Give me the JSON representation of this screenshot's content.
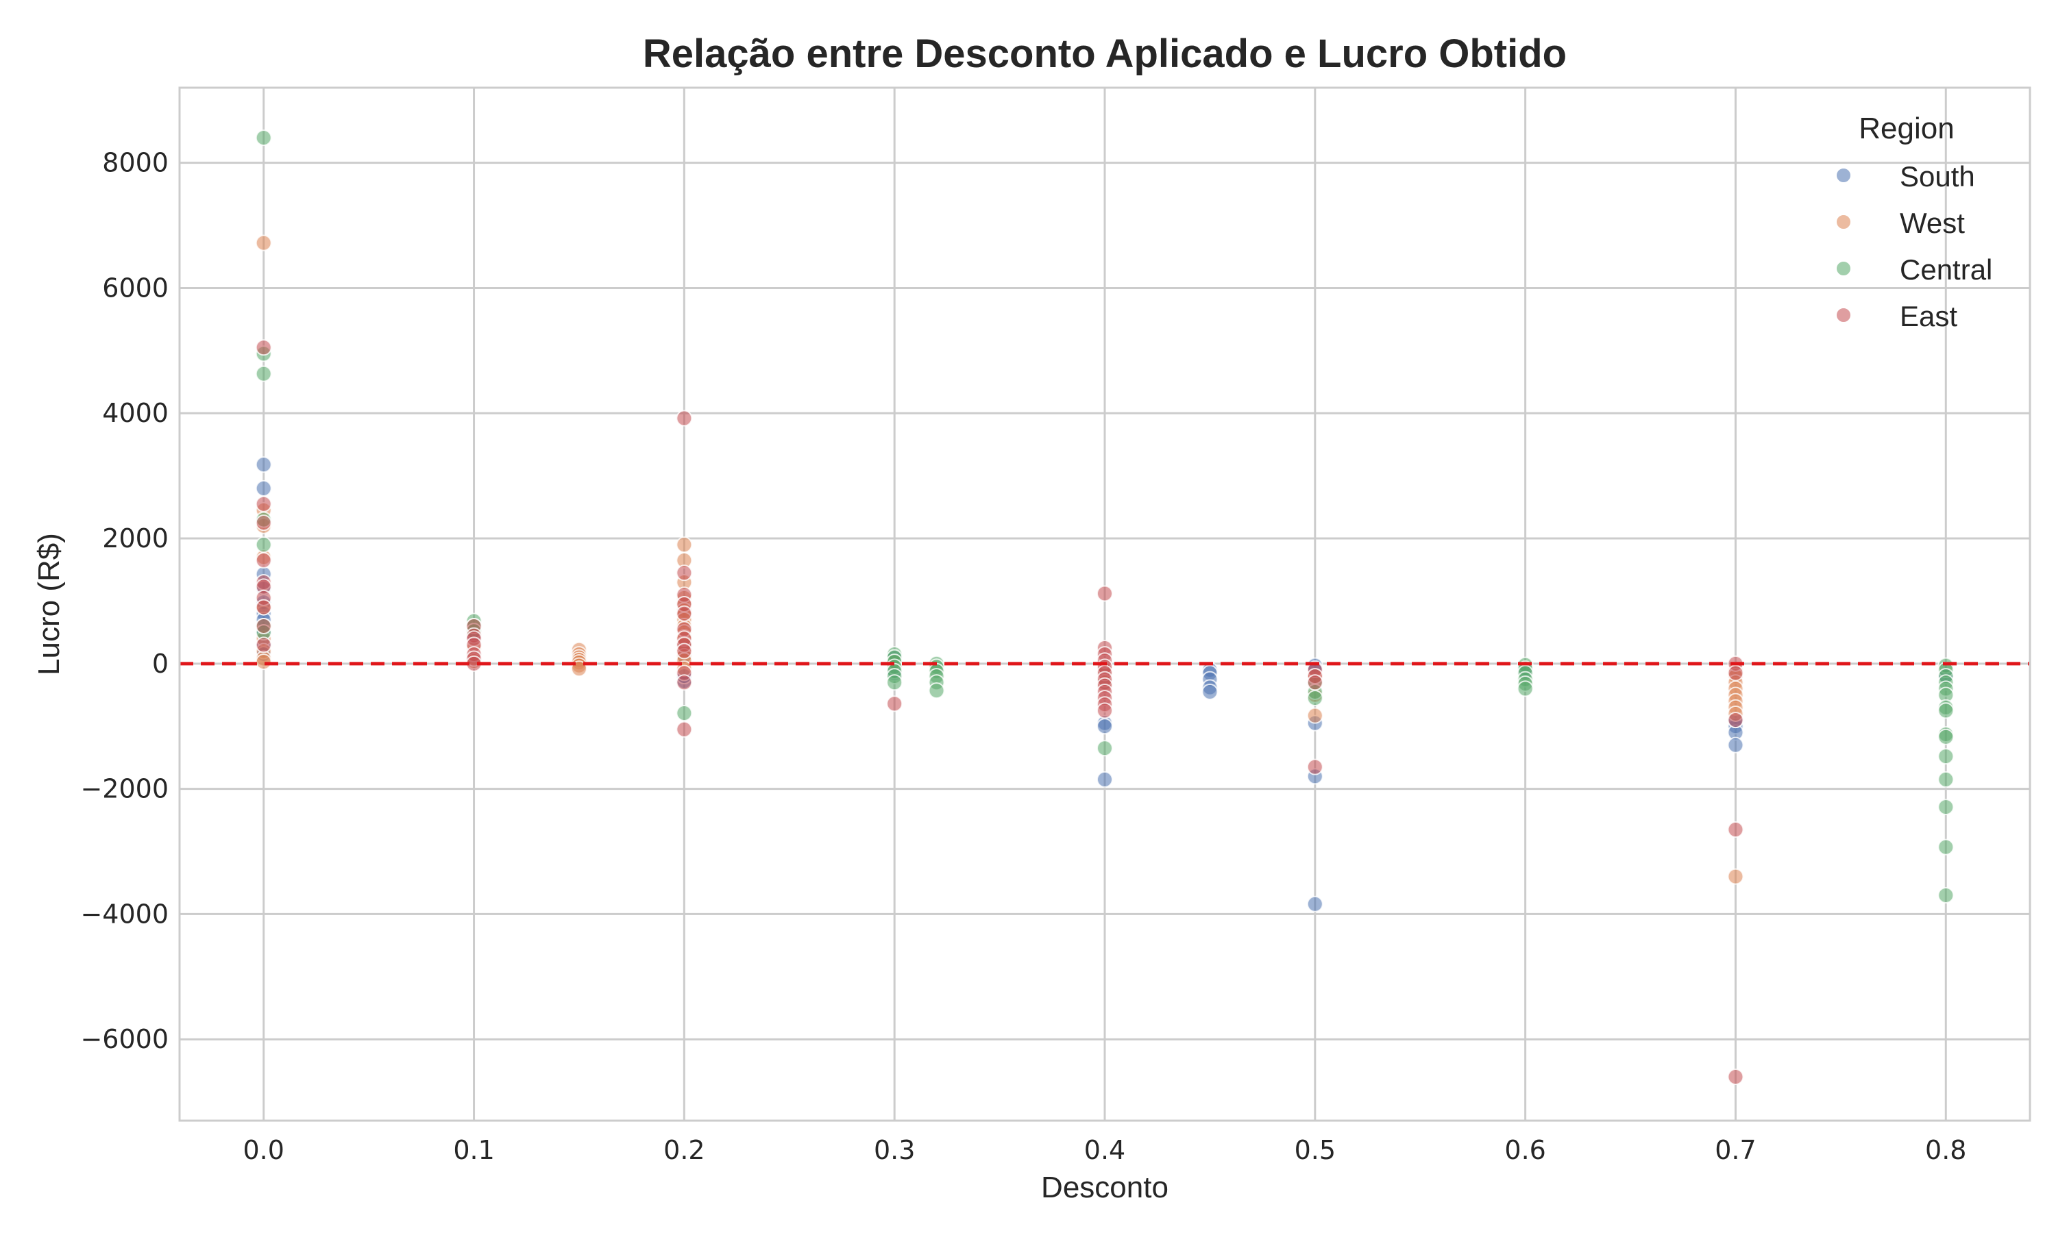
{
  "chart_data": {
    "type": "scatter",
    "title": "Relação entre Desconto Aplicado e Lucro Obtido",
    "xlabel": "Desconto",
    "ylabel": "Lucro (R$)",
    "xlim": [
      -0.04,
      0.84
    ],
    "ylim": [
      -7300,
      9200
    ],
    "x_ticks": [
      0.0,
      0.1,
      0.2,
      0.3,
      0.4,
      0.5,
      0.6,
      0.7,
      0.8
    ],
    "x_tick_labels": [
      "0.0",
      "0.1",
      "0.2",
      "0.3",
      "0.4",
      "0.5",
      "0.6",
      "0.7",
      "0.8"
    ],
    "y_ticks": [
      -6000,
      -4000,
      -2000,
      0,
      2000,
      4000,
      6000,
      8000
    ],
    "y_tick_labels": [
      "−6000",
      "−4000",
      "−2000",
      "0",
      "2000",
      "4000",
      "6000",
      "8000"
    ],
    "grid": true,
    "reference_line": {
      "y": 0,
      "color": "#e0161a",
      "style": "dashed"
    },
    "legend": {
      "title": "Region",
      "placement": "top-right"
    },
    "series": [
      {
        "name": "South",
        "color": "#4c72b0",
        "points": [
          [
            0.0,
            3180
          ],
          [
            0.0,
            2800
          ],
          [
            0.0,
            1430
          ],
          [
            0.0,
            1200
          ],
          [
            0.0,
            980
          ],
          [
            0.0,
            800
          ],
          [
            0.0,
            700
          ],
          [
            0.0,
            500
          ],
          [
            0.0,
            300
          ],
          [
            0.0,
            150
          ],
          [
            0.1,
            420
          ],
          [
            0.1,
            120
          ],
          [
            0.15,
            60
          ],
          [
            0.2,
            -280
          ],
          [
            0.2,
            -200
          ],
          [
            0.2,
            300
          ],
          [
            0.2,
            120
          ],
          [
            0.3,
            -150
          ],
          [
            0.3,
            90
          ],
          [
            0.4,
            -950
          ],
          [
            0.4,
            -1000
          ],
          [
            0.4,
            -1850
          ],
          [
            0.4,
            -300
          ],
          [
            0.4,
            -100
          ],
          [
            0.45,
            -100
          ],
          [
            0.45,
            -150
          ],
          [
            0.45,
            -250
          ],
          [
            0.45,
            -380
          ],
          [
            0.45,
            -450
          ],
          [
            0.5,
            -30
          ],
          [
            0.5,
            -80
          ],
          [
            0.5,
            -950
          ],
          [
            0.5,
            -1800
          ],
          [
            0.5,
            -3840
          ],
          [
            0.6,
            -120
          ],
          [
            0.7,
            -1000
          ],
          [
            0.7,
            -1100
          ],
          [
            0.7,
            -1300
          ],
          [
            0.7,
            -900
          ],
          [
            0.8,
            -200
          ]
        ]
      },
      {
        "name": "West",
        "color": "#dd8452",
        "points": [
          [
            0.0,
            6720
          ],
          [
            0.0,
            2450
          ],
          [
            0.0,
            2200
          ],
          [
            0.0,
            1700
          ],
          [
            0.0,
            900
          ],
          [
            0.0,
            400
          ],
          [
            0.0,
            200
          ],
          [
            0.0,
            80
          ],
          [
            0.0,
            30
          ],
          [
            0.1,
            250
          ],
          [
            0.1,
            100
          ],
          [
            0.1,
            40
          ],
          [
            0.15,
            220
          ],
          [
            0.15,
            150
          ],
          [
            0.15,
            100
          ],
          [
            0.15,
            60
          ],
          [
            0.15,
            20
          ],
          [
            0.15,
            -30
          ],
          [
            0.15,
            -80
          ],
          [
            0.2,
            1900
          ],
          [
            0.2,
            1650
          ],
          [
            0.2,
            1300
          ],
          [
            0.2,
            1050
          ],
          [
            0.2,
            950
          ],
          [
            0.2,
            850
          ],
          [
            0.2,
            780
          ],
          [
            0.2,
            700
          ],
          [
            0.2,
            600
          ],
          [
            0.2,
            500
          ],
          [
            0.2,
            420
          ],
          [
            0.2,
            320
          ],
          [
            0.2,
            200
          ],
          [
            0.2,
            120
          ],
          [
            0.2,
            50
          ],
          [
            0.2,
            -80
          ],
          [
            0.3,
            30
          ],
          [
            0.4,
            -100
          ],
          [
            0.4,
            -300
          ],
          [
            0.5,
            -200
          ],
          [
            0.5,
            -500
          ],
          [
            0.5,
            -830
          ],
          [
            0.7,
            -100
          ],
          [
            0.7,
            -200
          ],
          [
            0.7,
            -300
          ],
          [
            0.7,
            -400
          ],
          [
            0.7,
            -500
          ],
          [
            0.7,
            -600
          ],
          [
            0.7,
            -700
          ],
          [
            0.7,
            -800
          ],
          [
            0.7,
            -3400
          ]
        ]
      },
      {
        "name": "Central",
        "color": "#55a868",
        "points": [
          [
            0.0,
            8400
          ],
          [
            0.0,
            4950
          ],
          [
            0.0,
            4630
          ],
          [
            0.0,
            2300
          ],
          [
            0.0,
            1900
          ],
          [
            0.0,
            600
          ],
          [
            0.0,
            500
          ],
          [
            0.1,
            680
          ],
          [
            0.1,
            600
          ],
          [
            0.1,
            520
          ],
          [
            0.2,
            -790
          ],
          [
            0.3,
            150
          ],
          [
            0.3,
            100
          ],
          [
            0.3,
            30
          ],
          [
            0.3,
            -50
          ],
          [
            0.3,
            -120
          ],
          [
            0.3,
            -200
          ],
          [
            0.3,
            -300
          ],
          [
            0.32,
            0
          ],
          [
            0.32,
            -50
          ],
          [
            0.32,
            -120
          ],
          [
            0.32,
            -200
          ],
          [
            0.32,
            -300
          ],
          [
            0.32,
            -430
          ],
          [
            0.4,
            -1350
          ],
          [
            0.5,
            -300
          ],
          [
            0.5,
            -450
          ],
          [
            0.5,
            -550
          ],
          [
            0.6,
            -20
          ],
          [
            0.6,
            -80
          ],
          [
            0.6,
            -150
          ],
          [
            0.6,
            -250
          ],
          [
            0.6,
            -320
          ],
          [
            0.6,
            -400
          ],
          [
            0.8,
            -30
          ],
          [
            0.8,
            -100
          ],
          [
            0.8,
            -200
          ],
          [
            0.8,
            -300
          ],
          [
            0.8,
            -400
          ],
          [
            0.8,
            -500
          ],
          [
            0.8,
            -700
          ],
          [
            0.8,
            -750
          ],
          [
            0.8,
            -1130
          ],
          [
            0.8,
            -1170
          ],
          [
            0.8,
            -1480
          ],
          [
            0.8,
            -1850
          ],
          [
            0.8,
            -2290
          ],
          [
            0.8,
            -2930
          ],
          [
            0.8,
            -3700
          ]
        ]
      },
      {
        "name": "East",
        "color": "#c44e52",
        "points": [
          [
            0.0,
            5050
          ],
          [
            0.0,
            2550
          ],
          [
            0.0,
            2250
          ],
          [
            0.0,
            1650
          ],
          [
            0.0,
            1300
          ],
          [
            0.0,
            1230
          ],
          [
            0.0,
            1050
          ],
          [
            0.0,
            900
          ],
          [
            0.0,
            600
          ],
          [
            0.0,
            300
          ],
          [
            0.1,
            600
          ],
          [
            0.1,
            450
          ],
          [
            0.1,
            400
          ],
          [
            0.1,
            300
          ],
          [
            0.1,
            150
          ],
          [
            0.1,
            80
          ],
          [
            0.1,
            0
          ],
          [
            0.2,
            3920
          ],
          [
            0.2,
            1450
          ],
          [
            0.2,
            1100
          ],
          [
            0.2,
            950
          ],
          [
            0.2,
            800
          ],
          [
            0.2,
            550
          ],
          [
            0.2,
            400
          ],
          [
            0.2,
            300
          ],
          [
            0.2,
            200
          ],
          [
            0.2,
            -150
          ],
          [
            0.2,
            -300
          ],
          [
            0.2,
            -1050
          ],
          [
            0.3,
            -640
          ],
          [
            0.4,
            1120
          ],
          [
            0.4,
            250
          ],
          [
            0.4,
            150
          ],
          [
            0.4,
            50
          ],
          [
            0.4,
            -50
          ],
          [
            0.4,
            -150
          ],
          [
            0.4,
            -250
          ],
          [
            0.4,
            -350
          ],
          [
            0.4,
            -450
          ],
          [
            0.4,
            -550
          ],
          [
            0.4,
            -650
          ],
          [
            0.4,
            -750
          ],
          [
            0.5,
            -100
          ],
          [
            0.5,
            -200
          ],
          [
            0.5,
            -300
          ],
          [
            0.5,
            -1650
          ],
          [
            0.7,
            0
          ],
          [
            0.7,
            -150
          ],
          [
            0.7,
            -900
          ],
          [
            0.7,
            -2650
          ],
          [
            0.7,
            -6600
          ]
        ]
      }
    ]
  }
}
